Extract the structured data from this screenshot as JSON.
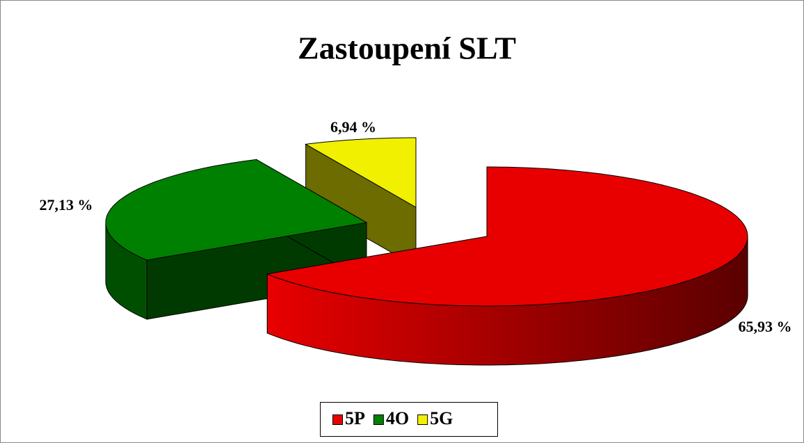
{
  "chart_data": {
    "type": "pie3d",
    "title": "Zastoupení SLT",
    "categories": [
      "5P",
      "4O",
      "5G"
    ],
    "values": [
      65.93,
      27.13,
      6.94
    ],
    "value_labels": [
      "65,93 %",
      "27,13 %",
      "6,94 %"
    ],
    "colors": [
      "#e80000",
      "#008000",
      "#f0f000"
    ],
    "legend": "bottom"
  }
}
